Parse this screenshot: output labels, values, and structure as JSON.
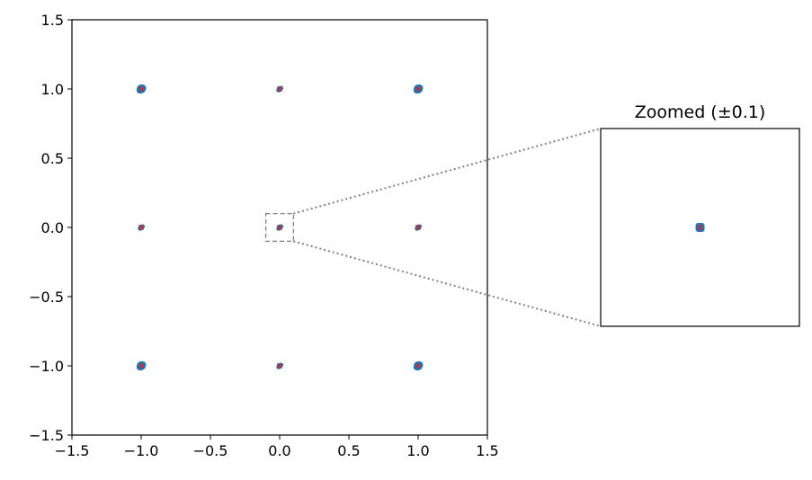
{
  "chart_data": [
    {
      "type": "scatter",
      "panel": "main",
      "title": "",
      "xlabel": "",
      "ylabel": "",
      "xlim": [
        -1.5,
        1.5
      ],
      "ylim": [
        -1.5,
        1.5
      ],
      "xticks": [
        "−1.5",
        "−1.0",
        "−0.5",
        "0.0",
        "0.5",
        "1.0",
        "1.5"
      ],
      "yticks": [
        "−1.5",
        "−1.0",
        "−0.5",
        "0.0",
        "0.5",
        "1.0",
        "1.5"
      ],
      "xtick_values": [
        -1.5,
        -1.0,
        -0.5,
        0.0,
        0.5,
        1.0,
        1.5
      ],
      "ytick_values": [
        -1.5,
        -1.0,
        -0.5,
        0.0,
        0.5,
        1.0,
        1.5
      ],
      "grid": false,
      "series": [
        {
          "marker": "circle",
          "color": "#1f77b4",
          "x": [
            -1.0,
            0.0,
            1.0,
            -1.0,
            0.0,
            1.0,
            -1.0,
            0.0,
            1.0
          ],
          "y": [
            1.0,
            1.0,
            1.0,
            0.0,
            0.0,
            0.0,
            -1.0,
            -1.0,
            -1.0
          ]
        },
        {
          "marker": "x",
          "color": "#d62728",
          "x": [
            -1.0,
            0.0,
            1.0,
            -1.0,
            0.0,
            1.0,
            -1.0,
            0.0,
            1.0
          ],
          "y": [
            1.0,
            1.0,
            1.0,
            0.0,
            0.0,
            0.0,
            -1.0,
            -1.0,
            -1.0
          ]
        }
      ],
      "zoom_box": {
        "x": [
          -0.1,
          0.1
        ],
        "y": [
          -0.1,
          0.1
        ],
        "color": "#808080"
      }
    },
    {
      "type": "scatter",
      "panel": "inset",
      "title": "Zoomed (±0.1)",
      "xlim": [
        -0.1,
        0.1
      ],
      "ylim": [
        -0.1,
        0.1
      ],
      "series": [
        {
          "marker": "circle",
          "color": "#1f77b4",
          "x": [
            0.0
          ],
          "y": [
            0.0
          ]
        },
        {
          "marker": "x",
          "color": "#d62728",
          "x": [
            0.0
          ],
          "y": [
            0.0
          ]
        }
      ]
    }
  ]
}
